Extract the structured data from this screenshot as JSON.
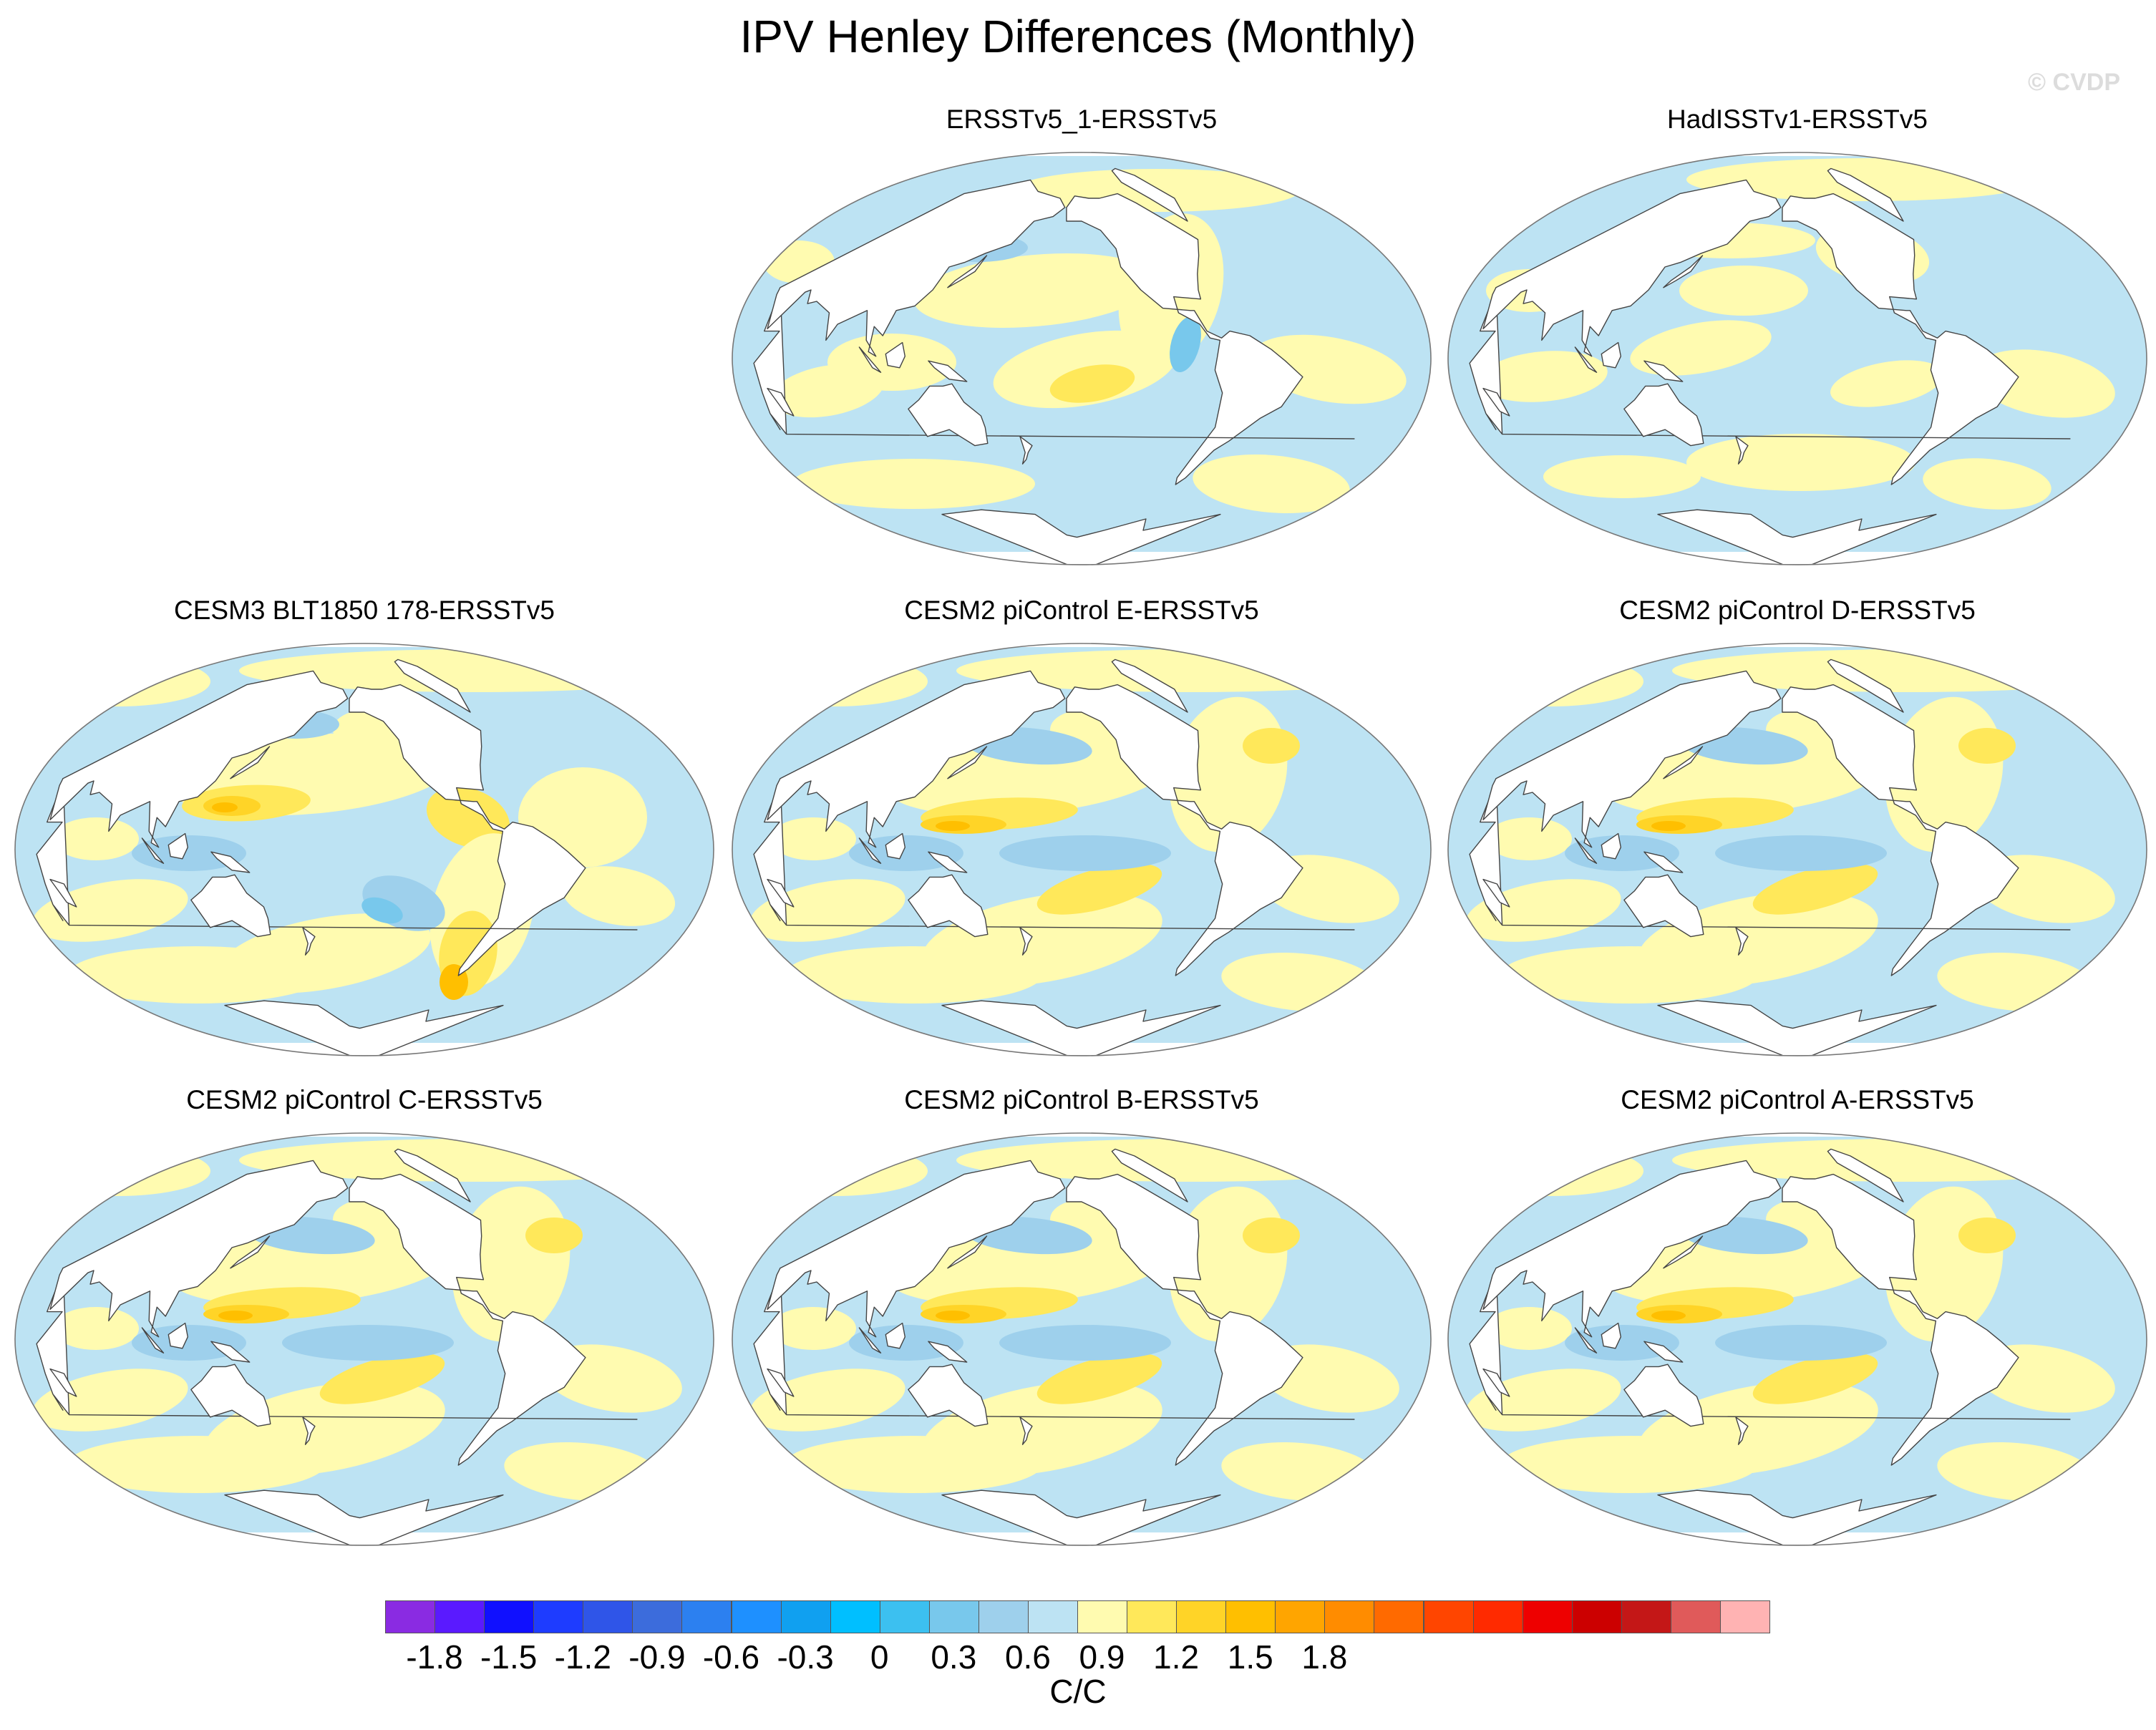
{
  "figure": {
    "title": "IPV Henley Differences (Monthly)",
    "credit": "© CVDP"
  },
  "panels": [
    {
      "id": "p1",
      "label": "ERSSTv5_1-ERSSTv5",
      "pattern": "obs_a"
    },
    {
      "id": "p2",
      "label": "HadISSTv1-ERSSTv5",
      "pattern": "obs_b"
    },
    {
      "id": "p3",
      "label": "CESM3 BLT1850 178-ERSSTv5",
      "pattern": "model_strong"
    },
    {
      "id": "p4",
      "label": "CESM2 piControl E-ERSSTv5",
      "pattern": "model"
    },
    {
      "id": "p5",
      "label": "CESM2 piControl D-ERSSTv5",
      "pattern": "model"
    },
    {
      "id": "p6",
      "label": "CESM2 piControl C-ERSSTv5",
      "pattern": "model"
    },
    {
      "id": "p7",
      "label": "CESM2 piControl B-ERSSTv5",
      "pattern": "model"
    },
    {
      "id": "p8",
      "label": "CESM2 piControl A-ERSSTv5",
      "pattern": "model"
    }
  ],
  "colorbar": {
    "units": "C/C",
    "colors": [
      "#8a2be2",
      "#5a1aff",
      "#1010ff",
      "#1e3cff",
      "#2f55e8",
      "#3c6cdc",
      "#2c80f0",
      "#1e90ff",
      "#10a0f0",
      "#00bfff",
      "#3cc0f0",
      "#78c8ec",
      "#9ed0ec",
      "#bde3f3",
      "#fffbb0",
      "#ffe85a",
      "#ffd427",
      "#ffbf00",
      "#ffa500",
      "#ff8c00",
      "#ff6a00",
      "#ff4500",
      "#ff2a00",
      "#ee0000",
      "#cc0000",
      "#c41717",
      "#e05a5a",
      "#ffb3b3"
    ],
    "tick_labels": [
      "-1.8",
      "-1.5",
      "-1.2",
      "-0.9",
      "-0.6",
      "-0.3",
      "0",
      "0.3",
      "0.6",
      "0.9",
      "1.2",
      "1.5",
      "1.8"
    ],
    "tick_positions": [
      2,
      5,
      8,
      11,
      14,
      17,
      20,
      23,
      26,
      29,
      32,
      35,
      38
    ]
  }
}
